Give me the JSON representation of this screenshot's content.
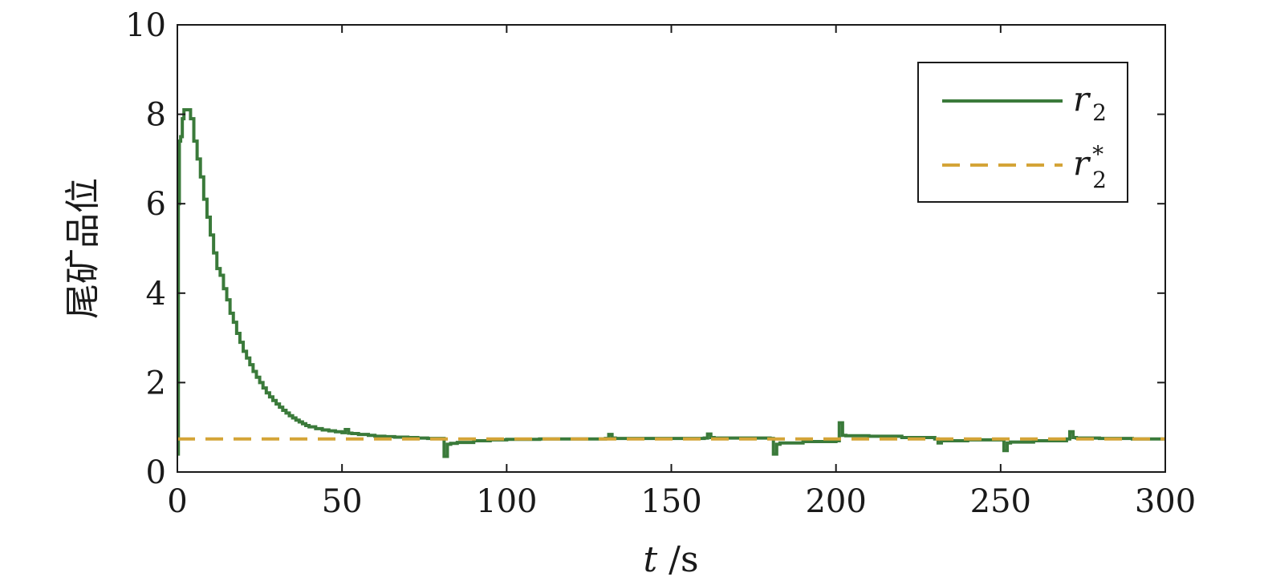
{
  "chart_data": {
    "type": "line",
    "title": "",
    "xlabel": {
      "var": "t",
      "unit": " /s"
    },
    "ylabel": "尾矿品位",
    "xlim": [
      0,
      300
    ],
    "ylim": [
      0,
      10
    ],
    "xticks": [
      0,
      50,
      100,
      150,
      200,
      250,
      300
    ],
    "yticks": [
      0,
      2,
      4,
      6,
      8,
      10
    ],
    "grid": false,
    "legend_position": "top-right",
    "series": [
      {
        "name": "r_2",
        "legend": {
          "main": "r",
          "sub": "2",
          "sup": ""
        },
        "style": "solid-step",
        "color": "#3a7a3a",
        "x": [
          0,
          0.3,
          0.6,
          1,
          1.5,
          2,
          3,
          4,
          5,
          6,
          7,
          8,
          9,
          10,
          11,
          12,
          13,
          14,
          15,
          16,
          17,
          18,
          19,
          20,
          21,
          22,
          23,
          24,
          25,
          26,
          27,
          28,
          29,
          30,
          31,
          32,
          33,
          34,
          35,
          36,
          37,
          38,
          39,
          40,
          42,
          44,
          46,
          48,
          50,
          51,
          52,
          53,
          55,
          58,
          60,
          63,
          66,
          70,
          73,
          76,
          80,
          81,
          82,
          83,
          85,
          90,
          95,
          100,
          110,
          120,
          130,
          131,
          132,
          133,
          140,
          150,
          160,
          161,
          162,
          163,
          170,
          180,
          181,
          182,
          183,
          190,
          200,
          201,
          202,
          203,
          210,
          220,
          230,
          231,
          232,
          233,
          240,
          250,
          251,
          252,
          253,
          260,
          270,
          271,
          272,
          273,
          280,
          290,
          300
        ],
        "y": [
          0.4,
          6.0,
          7.4,
          7.5,
          7.9,
          8.1,
          8.1,
          7.9,
          7.4,
          7.0,
          6.6,
          6.1,
          5.7,
          5.3,
          4.9,
          4.55,
          4.4,
          4.1,
          3.85,
          3.55,
          3.35,
          3.1,
          2.9,
          2.7,
          2.55,
          2.4,
          2.25,
          2.12,
          2.0,
          1.88,
          1.77,
          1.68,
          1.6,
          1.52,
          1.45,
          1.38,
          1.32,
          1.26,
          1.21,
          1.16,
          1.12,
          1.08,
          1.04,
          1.01,
          0.97,
          0.94,
          0.92,
          0.9,
          0.88,
          0.95,
          0.87,
          0.86,
          0.84,
          0.82,
          0.8,
          0.79,
          0.78,
          0.77,
          0.76,
          0.75,
          0.75,
          0.35,
          0.62,
          0.64,
          0.66,
          0.7,
          0.72,
          0.73,
          0.74,
          0.74,
          0.75,
          0.84,
          0.76,
          0.75,
          0.75,
          0.75,
          0.76,
          0.85,
          0.77,
          0.76,
          0.76,
          0.75,
          0.4,
          0.62,
          0.65,
          0.68,
          0.7,
          1.1,
          0.82,
          0.81,
          0.8,
          0.77,
          0.74,
          0.65,
          0.7,
          0.7,
          0.72,
          0.72,
          0.48,
          0.65,
          0.67,
          0.7,
          0.74,
          0.9,
          0.77,
          0.76,
          0.75,
          0.74,
          0.74
        ]
      },
      {
        "name": "r_2*",
        "legend": {
          "main": "r",
          "sub": "2",
          "sup": "*"
        },
        "style": "dashed",
        "color": "#d4a437",
        "x": [
          0,
          300
        ],
        "y": [
          0.74,
          0.74
        ]
      }
    ]
  }
}
